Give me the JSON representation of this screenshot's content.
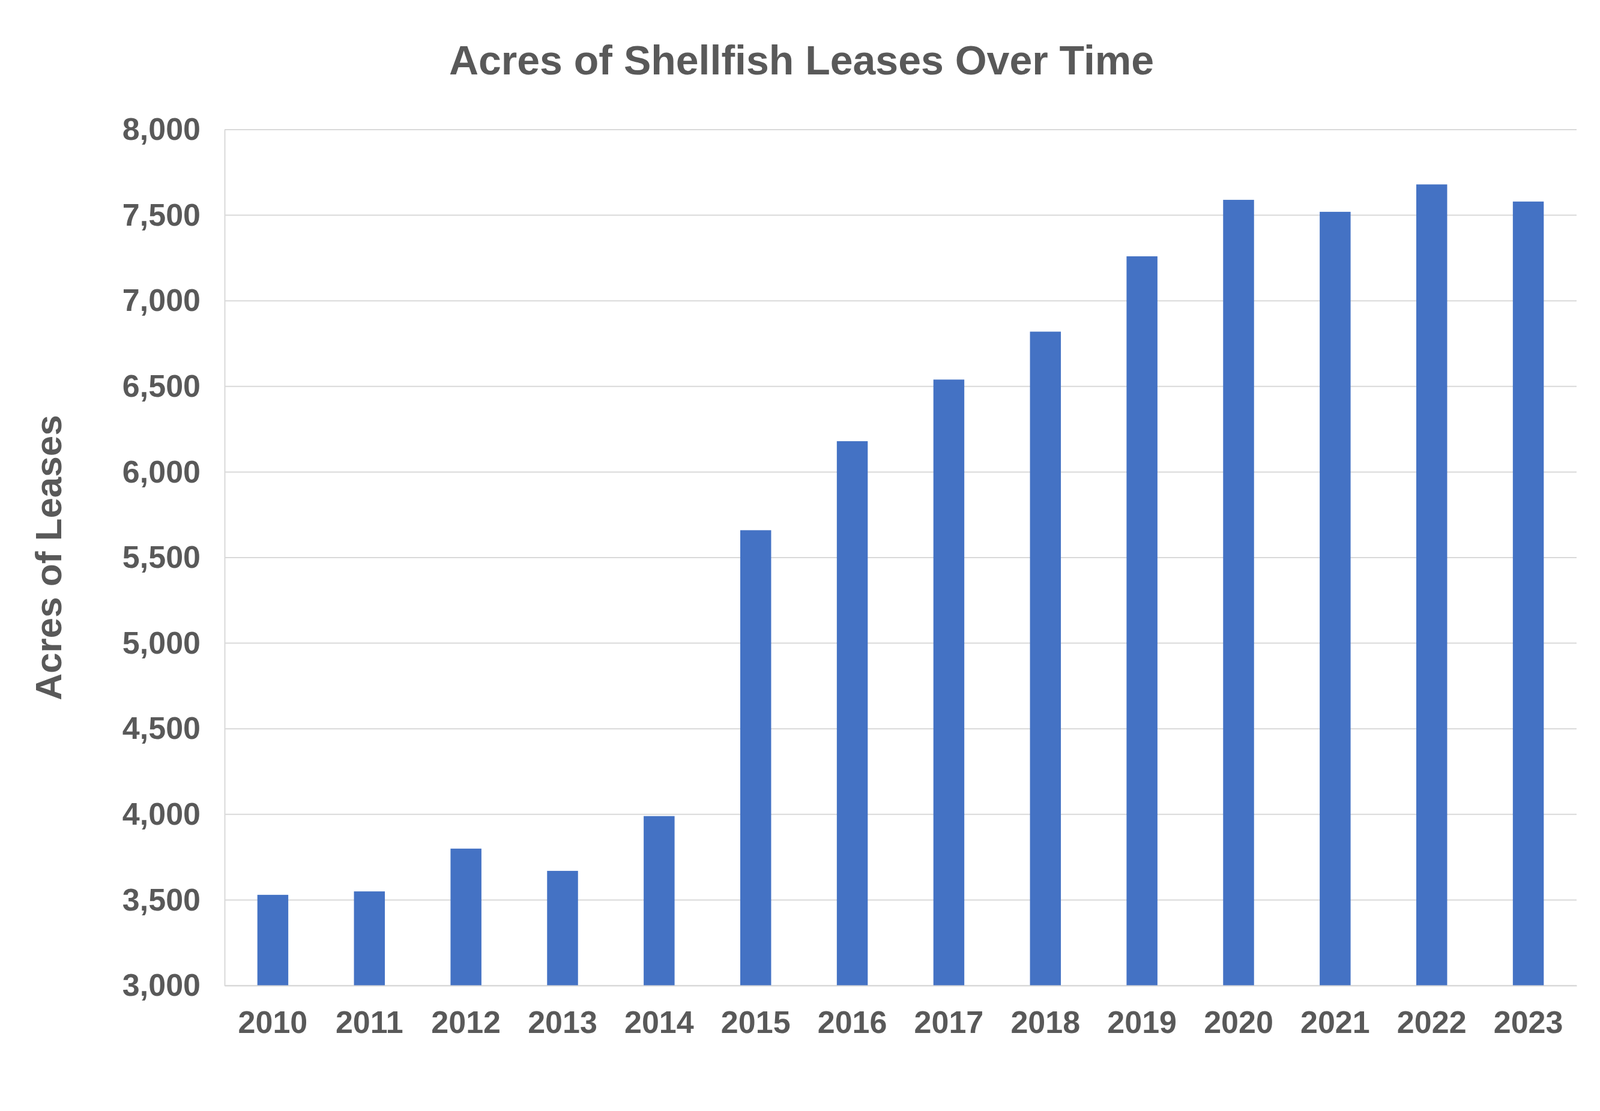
{
  "chart_data": {
    "type": "bar",
    "title": "Acres of Shellfish Leases Over Time",
    "y_label": "Acres of Leases",
    "categories": [
      "2010",
      "2011",
      "2012",
      "2013",
      "2014",
      "2015",
      "2016",
      "2017",
      "2018",
      "2019",
      "2020",
      "2021",
      "2022",
      "2023"
    ],
    "values": [
      3530,
      3550,
      3800,
      3670,
      3990,
      5660,
      6180,
      6540,
      6820,
      7260,
      7590,
      7520,
      7680,
      7580
    ],
    "color": "#4472c4",
    "ylim": [
      3000,
      8000
    ],
    "yticks": [
      {
        "value": 3000,
        "label": "3,000"
      },
      {
        "value": 3500,
        "label": "3,500"
      },
      {
        "value": 4000,
        "label": "4,000"
      },
      {
        "value": 4500,
        "label": "4,500"
      },
      {
        "value": 5000,
        "label": "5,000"
      },
      {
        "value": 5500,
        "label": "5,500"
      },
      {
        "value": 6000,
        "label": "6,000"
      },
      {
        "value": 6500,
        "label": "6,500"
      },
      {
        "value": 7000,
        "label": "7,000"
      },
      {
        "value": 7500,
        "label": "7,500"
      },
      {
        "value": 8000,
        "label": "8,000"
      }
    ],
    "grid": true
  }
}
